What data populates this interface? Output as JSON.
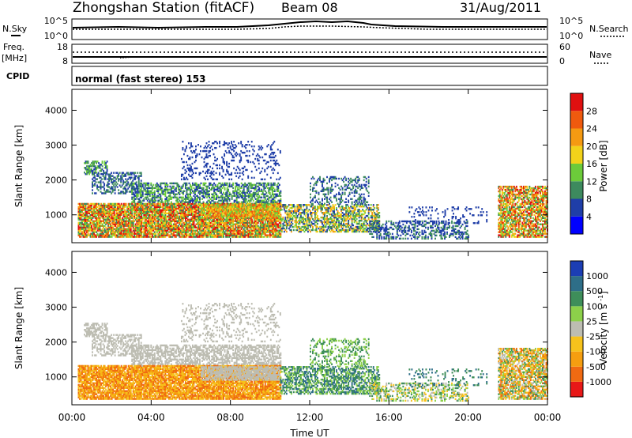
{
  "header": {
    "station": "Zhongshan Station (fitACF)",
    "beam": "Beam 08",
    "date": "31/Aug/2011"
  },
  "noise_panel": {
    "left_label": "N.Sky",
    "left_ticks": [
      "10^5",
      "10^0"
    ],
    "right_label": "N.Search",
    "right_ticks": [
      "10^5",
      "10^0"
    ]
  },
  "freq_panel": {
    "left_label_1": "Freq.",
    "left_label_2": "[MHz]",
    "left_ticks": [
      "18",
      "8"
    ],
    "right_label": "Nave",
    "right_ticks": [
      "60",
      "0"
    ]
  },
  "cpid": {
    "label": "CPID",
    "value": "normal (fast stereo) 153"
  },
  "time_axis": {
    "label": "Time UT",
    "ticks": [
      "00:00",
      "04:00",
      "08:00",
      "12:00",
      "16:00",
      "20:00",
      "00:00"
    ]
  },
  "chart_data": [
    {
      "type": "heatmap",
      "name": "power",
      "ylabel": "Slant Range [km]",
      "xlim": [
        0,
        24
      ],
      "ylim": [
        200,
        4600
      ],
      "y_ticks": [
        "4000",
        "3000",
        "2000",
        "1000"
      ],
      "colorbar": {
        "label": "Power [dB]",
        "ticks": [
          "28",
          "24",
          "20",
          "16",
          "12",
          "8",
          "4"
        ],
        "colors": [
          "#0000ff",
          "#1f3ea8",
          "#3d8a5e",
          "#6ccb3a",
          "#f2d21a",
          "#f59a12",
          "#ef5a0e",
          "#e01010"
        ]
      }
    },
    {
      "type": "heatmap",
      "name": "velocity",
      "ylabel": "Slant Range [km]",
      "xlim": [
        0,
        24
      ],
      "ylim": [
        200,
        4600
      ],
      "y_ticks": [
        "4000",
        "3000",
        "2000",
        "1000"
      ],
      "colorbar": {
        "label": "Velocity [m s^-1]",
        "ticks": [
          "1000",
          "500",
          "100",
          "25",
          "-25",
          "-100",
          "-500",
          "-1000"
        ],
        "colors": [
          "#e81818",
          "#f06a12",
          "#f59e10",
          "#f6c21c",
          "#bdbdb2",
          "#8cd04a",
          "#3e8e5a",
          "#2e6e88",
          "#1c3eb4"
        ]
      }
    }
  ]
}
